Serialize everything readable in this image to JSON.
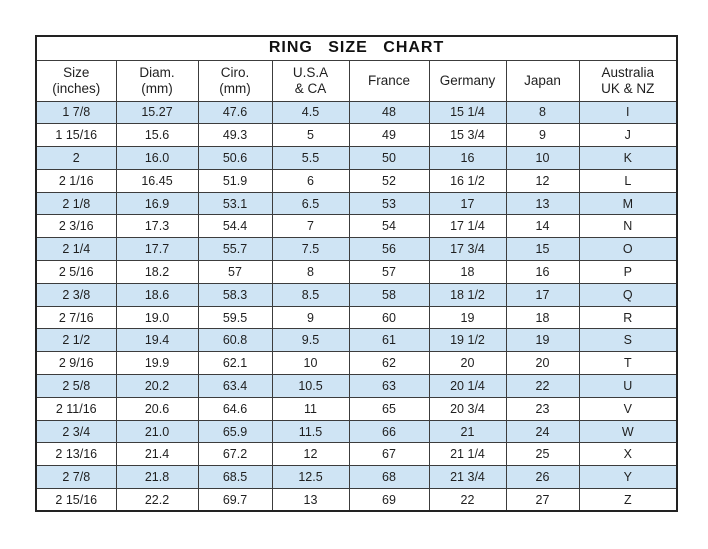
{
  "title": "RING SIZE CHART",
  "header": [
    {
      "id": "size-inches",
      "lines": [
        "Size",
        "(inches)"
      ]
    },
    {
      "id": "diam-mm",
      "lines": [
        "Diam.",
        "(mm)"
      ]
    },
    {
      "id": "ciro-mm",
      "lines": [
        "Ciro.",
        "(mm)"
      ]
    },
    {
      "id": "usa-ca",
      "lines": [
        "U.S.A",
        "& CA"
      ]
    },
    {
      "id": "france",
      "lines": [
        "France"
      ]
    },
    {
      "id": "germany",
      "lines": [
        "Germany"
      ]
    },
    {
      "id": "japan",
      "lines": [
        "Japan"
      ]
    },
    {
      "id": "australia-uk-nz",
      "lines": [
        "Australia",
        "UK & NZ"
      ]
    }
  ],
  "chart_data": {
    "type": "table",
    "title": "RING SIZE CHART",
    "columns": [
      "Size (inches)",
      "Diam. (mm)",
      "Ciro. (mm)",
      "U.S.A & CA",
      "France",
      "Germany",
      "Japan",
      "Australia UK & NZ"
    ],
    "rows": [
      [
        "1 7/8",
        "15.27",
        "47.6",
        "4.5",
        "48",
        "15 1/4",
        "8",
        "I"
      ],
      [
        "1 15/16",
        "15.6",
        "49.3",
        "5",
        "49",
        "15 3/4",
        "9",
        "J"
      ],
      [
        "2",
        "16.0",
        "50.6",
        "5.5",
        "50",
        "16",
        "10",
        "K"
      ],
      [
        "2 1/16",
        "16.45",
        "51.9",
        "6",
        "52",
        "16 1/2",
        "12",
        "L"
      ],
      [
        "2 1/8",
        "16.9",
        "53.1",
        "6.5",
        "53",
        "17",
        "13",
        "M"
      ],
      [
        "2 3/16",
        "17.3",
        "54.4",
        "7",
        "54",
        "17 1/4",
        "14",
        "N"
      ],
      [
        "2 1/4",
        "17.7",
        "55.7",
        "7.5",
        "56",
        "17 3/4",
        "15",
        "O"
      ],
      [
        "2 5/16",
        "18.2",
        "57",
        "8",
        "57",
        "18",
        "16",
        "P"
      ],
      [
        "2 3/8",
        "18.6",
        "58.3",
        "8.5",
        "58",
        "18 1/2",
        "17",
        "Q"
      ],
      [
        "2 7/16",
        "19.0",
        "59.5",
        "9",
        "60",
        "19",
        "18",
        "R"
      ],
      [
        "2 1/2",
        "19.4",
        "60.8",
        "9.5",
        "61",
        "19 1/2",
        "19",
        "S"
      ],
      [
        "2 9/16",
        "19.9",
        "62.1",
        "10",
        "62",
        "20",
        "20",
        "T"
      ],
      [
        "2 5/8",
        "20.2",
        "63.4",
        "10.5",
        "63",
        "20 1/4",
        "22",
        "U"
      ],
      [
        "2 11/16",
        "20.6",
        "64.6",
        "11",
        "65",
        "20 3/4",
        "23",
        "V"
      ],
      [
        "2 3/4",
        "21.0",
        "65.9",
        "11.5",
        "66",
        "21",
        "24",
        "W"
      ],
      [
        "2 13/16",
        "21.4",
        "67.2",
        "12",
        "67",
        "21 1/4",
        "25",
        "X"
      ],
      [
        "2 7/8",
        "21.8",
        "68.5",
        "12.5",
        "68",
        "21 3/4",
        "26",
        "Y"
      ],
      [
        "2 15/16",
        "22.2",
        "69.7",
        "13",
        "69",
        "22",
        "27",
        "Z"
      ]
    ]
  },
  "colors": {
    "row_highlight": "#cfe4f4",
    "row_plain": "#ffffff",
    "border": "#3c3c3c",
    "text": "#1f1f1f"
  }
}
